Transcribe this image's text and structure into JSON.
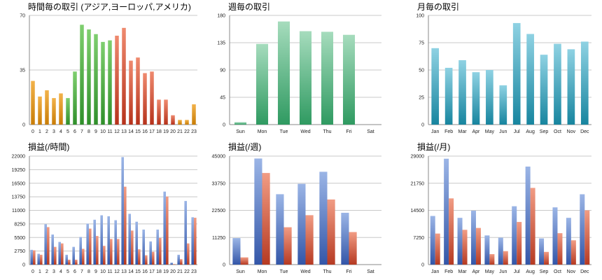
{
  "colors": {
    "orange": [
      "#f2b24a",
      "#c97d06"
    ],
    "green": [
      "#7fcf6f",
      "#2f8f2a"
    ],
    "red": [
      "#ef8a6f",
      "#b6321b"
    ],
    "weekday": [
      "#a6dcbd",
      "#2f9a61"
    ],
    "month": [
      "#8fd2e3",
      "#17859f"
    ],
    "profit_blue": [
      "#9bb5e6",
      "#3356a8"
    ],
    "profit_red": [
      "#f19c84",
      "#b63a22"
    ]
  },
  "chart_data": [
    {
      "id": "hourly-trades",
      "type": "bar",
      "title": "時間毎の取引 (アジア,ヨーロッパ,アメリカ)",
      "categories": [
        "0",
        "1",
        "2",
        "3",
        "4",
        "5",
        "6",
        "7",
        "8",
        "9",
        "10",
        "11",
        "12",
        "13",
        "14",
        "15",
        "16",
        "17",
        "18",
        "19",
        "20",
        "21",
        "22",
        "23"
      ],
      "values": [
        28,
        18,
        22,
        17,
        20,
        17,
        34,
        64,
        61,
        58,
        53,
        54,
        57,
        62,
        41,
        43,
        33,
        34,
        16,
        16,
        6,
        3,
        3,
        13
      ],
      "color_groups": [
        "orange",
        "orange",
        "orange",
        "orange",
        "orange",
        "green",
        "green",
        "green",
        "green",
        "green",
        "green",
        "green",
        "red",
        "red",
        "red",
        "red",
        "red",
        "red",
        "red",
        "red",
        "red",
        "orange",
        "orange",
        "orange"
      ],
      "ylim": [
        0,
        70
      ],
      "yticks": [
        "0",
        "35",
        "70"
      ]
    },
    {
      "id": "weekday-trades",
      "type": "bar",
      "title": "週毎の取引",
      "categories": [
        "Sun",
        "Mon",
        "Tue",
        "Wed",
        "Thu",
        "Fri",
        "Sat"
      ],
      "values": [
        4,
        133,
        170,
        154,
        153,
        148,
        0
      ],
      "color_groups": [
        "weekday",
        "weekday",
        "weekday",
        "weekday",
        "weekday",
        "weekday",
        "weekday"
      ],
      "ylim": [
        0,
        180
      ],
      "yticks": [
        "0",
        "45",
        "90",
        "135",
        "180"
      ]
    },
    {
      "id": "monthly-trades",
      "type": "bar",
      "title": "月毎の取引",
      "categories": [
        "Jan",
        "Feb",
        "Mar",
        "Apr",
        "May",
        "Jun",
        "Jul",
        "Aug",
        "Sep",
        "Oct",
        "Nov",
        "Dec"
      ],
      "values": [
        70,
        52,
        59,
        48,
        50,
        36,
        93,
        83,
        64,
        74,
        69,
        76
      ],
      "color_groups": [
        "month",
        "month",
        "month",
        "month",
        "month",
        "month",
        "month",
        "month",
        "month",
        "month",
        "month",
        "month"
      ],
      "ylim": [
        0,
        100
      ],
      "yticks": [
        "0",
        "25",
        "50",
        "75",
        "100"
      ]
    },
    {
      "id": "hourly-profit",
      "type": "bar",
      "title": "損益(/時間)",
      "categories": [
        "0",
        "1",
        "2",
        "3",
        "4",
        "5",
        "6",
        "7",
        "8",
        "9",
        "10",
        "11",
        "12",
        "13",
        "14",
        "15",
        "16",
        "17",
        "18",
        "19",
        "20",
        "21",
        "22",
        "23"
      ],
      "series": [
        {
          "name": "profit",
          "color_group": "profit_blue",
          "values": [
            3000,
            2200,
            8200,
            6100,
            4600,
            2000,
            3600,
            5600,
            8300,
            9100,
            10000,
            9800,
            9000,
            21800,
            10300,
            8700,
            7100,
            4700,
            7100,
            14800,
            400,
            2000,
            12900,
            9600
          ]
        },
        {
          "name": "loss",
          "color_group": "profit_red",
          "values": [
            2900,
            2000,
            7600,
            3600,
            4300,
            1000,
            1000,
            3200,
            7300,
            5800,
            3800,
            5200,
            5200,
            15800,
            6900,
            3100,
            1900,
            2600,
            5400,
            13800,
            100,
            1100,
            4300,
            9500
          ]
        }
      ],
      "ylim": [
        0,
        22000
      ],
      "yticks": [
        "0",
        "2750",
        "5500",
        "8250",
        "11000",
        "13750",
        "16500",
        "19250",
        "22000"
      ]
    },
    {
      "id": "weekday-profit",
      "type": "bar",
      "title": "損益(/週)",
      "categories": [
        "Sun",
        "Mon",
        "Tue",
        "Wed",
        "Thu",
        "Fri",
        "Sat"
      ],
      "series": [
        {
          "name": "profit",
          "color_group": "profit_blue",
          "values": [
            11000,
            44000,
            29200,
            33500,
            38500,
            21500,
            0
          ]
        },
        {
          "name": "loss",
          "color_group": "profit_red",
          "values": [
            3000,
            38000,
            15500,
            20500,
            27000,
            13500,
            0
          ]
        }
      ],
      "ylim": [
        0,
        45000
      ],
      "yticks": [
        "0",
        "11250",
        "22500",
        "33750",
        "45000"
      ]
    },
    {
      "id": "monthly-profit",
      "type": "bar",
      "title": "損益(/月)",
      "categories": [
        "Jan",
        "Feb",
        "Mar",
        "Apr",
        "May",
        "Jun",
        "Jul",
        "Aug",
        "Sep",
        "Oct",
        "Nov",
        "Dec"
      ],
      "series": [
        {
          "name": "profit",
          "color_group": "profit_blue",
          "values": [
            13000,
            28300,
            12500,
            14400,
            7800,
            7200,
            15600,
            26200,
            7000,
            15300,
            12500,
            18800
          ]
        },
        {
          "name": "loss",
          "color_group": "profit_red",
          "values": [
            8300,
            17700,
            9300,
            9800,
            2800,
            3600,
            11400,
            20500,
            3400,
            8400,
            6500,
            14500
          ]
        }
      ],
      "ylim": [
        0,
        29000
      ],
      "yticks": [
        "0",
        "7250",
        "14500",
        "21750",
        "29000"
      ]
    }
  ]
}
